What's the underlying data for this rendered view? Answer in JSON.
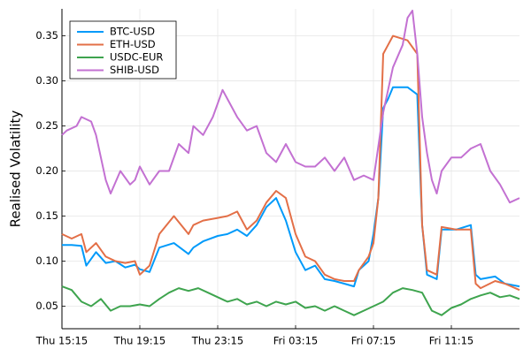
{
  "chart_data": {
    "type": "line",
    "ylabel": "Realised Volatility",
    "xlabel": "",
    "x_axis_kind": "datetime",
    "x_ticks": [
      "Thu 15:15",
      "Thu 19:15",
      "Thu 23:15",
      "Fri 03:15",
      "Fri 07:15",
      "Fri 11:15"
    ],
    "x_range": [
      "Thu 15:15",
      "Fri 14:45"
    ],
    "ylim": [
      0.025,
      0.38
    ],
    "y_ticks": [
      0.05,
      0.1,
      0.15,
      0.2,
      0.25,
      0.3,
      0.35
    ],
    "y_tick_labels": [
      "0.05",
      "0.10",
      "0.15",
      "0.20",
      "0.25",
      "0.30",
      "0.35"
    ],
    "grid": true,
    "legend_position": "top-left",
    "colors": {
      "BTC-USD": "#009AFA",
      "ETH-USD": "#E36F47",
      "USDC-EUR": "#3EA44E",
      "SHIB-USD": "#C371D2"
    },
    "series": [
      {
        "name": "BTC-USD",
        "points": [
          [
            "Thu 15:15",
            0.118
          ],
          [
            "Thu 15:45",
            0.118
          ],
          [
            "Thu 16:15",
            0.117
          ],
          [
            "Thu 16:30",
            0.095
          ],
          [
            "Thu 17:00",
            0.11
          ],
          [
            "Thu 17:30",
            0.098
          ],
          [
            "Thu 18:00",
            0.1
          ],
          [
            "Thu 18:30",
            0.093
          ],
          [
            "Thu 19:00",
            0.096
          ],
          [
            "Thu 19:15",
            0.091
          ],
          [
            "Thu 19:45",
            0.088
          ],
          [
            "Thu 20:15",
            0.115
          ],
          [
            "Thu 21:00",
            0.12
          ],
          [
            "Thu 21:45",
            0.108
          ],
          [
            "Thu 22:00",
            0.115
          ],
          [
            "Thu 22:30",
            0.122
          ],
          [
            "Thu 23:15",
            0.128
          ],
          [
            "Thu 23:45",
            0.13
          ],
          [
            "Fri 00:15",
            0.135
          ],
          [
            "Fri 00:45",
            0.128
          ],
          [
            "Fri 01:15",
            0.14
          ],
          [
            "Fri 01:45",
            0.16
          ],
          [
            "Fri 02:15",
            0.17
          ],
          [
            "Fri 02:45",
            0.145
          ],
          [
            "Fri 03:15",
            0.11
          ],
          [
            "Fri 03:45",
            0.09
          ],
          [
            "Fri 04:15",
            0.095
          ],
          [
            "Fri 04:45",
            0.08
          ],
          [
            "Fri 05:15",
            0.078
          ],
          [
            "Fri 05:45",
            0.075
          ],
          [
            "Fri 06:15",
            0.072
          ],
          [
            "Fri 06:30",
            0.09
          ],
          [
            "Fri 07:00",
            0.1
          ],
          [
            "Fri 07:15",
            0.13
          ],
          [
            "Fri 07:30",
            0.17
          ],
          [
            "Fri 07:45",
            0.27
          ],
          [
            "Fri 08:00",
            0.28
          ],
          [
            "Fri 08:15",
            0.293
          ],
          [
            "Fri 09:00",
            0.293
          ],
          [
            "Fri 09:30",
            0.285
          ],
          [
            "Fri 09:45",
            0.14
          ],
          [
            "Fri 10:00",
            0.085
          ],
          [
            "Fri 10:30",
            0.08
          ],
          [
            "Fri 10:45",
            0.135
          ],
          [
            "Fri 11:30",
            0.135
          ],
          [
            "Fri 12:15",
            0.14
          ],
          [
            "Fri 12:30",
            0.085
          ],
          [
            "Fri 12:45",
            0.08
          ],
          [
            "Fri 13:30",
            0.083
          ],
          [
            "Fri 14:00",
            0.075
          ],
          [
            "Fri 14:45",
            0.072
          ]
        ]
      },
      {
        "name": "ETH-USD",
        "points": [
          [
            "Thu 15:15",
            0.13
          ],
          [
            "Thu 15:45",
            0.125
          ],
          [
            "Thu 16:15",
            0.13
          ],
          [
            "Thu 16:30",
            0.11
          ],
          [
            "Thu 17:00",
            0.12
          ],
          [
            "Thu 17:30",
            0.105
          ],
          [
            "Thu 18:00",
            0.1
          ],
          [
            "Thu 18:30",
            0.098
          ],
          [
            "Thu 19:00",
            0.1
          ],
          [
            "Thu 19:15",
            0.085
          ],
          [
            "Thu 19:45",
            0.095
          ],
          [
            "Thu 20:15",
            0.13
          ],
          [
            "Thu 21:00",
            0.15
          ],
          [
            "Thu 21:45",
            0.13
          ],
          [
            "Thu 22:00",
            0.14
          ],
          [
            "Thu 22:30",
            0.145
          ],
          [
            "Thu 23:15",
            0.148
          ],
          [
            "Thu 23:45",
            0.15
          ],
          [
            "Fri 00:15",
            0.155
          ],
          [
            "Fri 00:45",
            0.135
          ],
          [
            "Fri 01:15",
            0.145
          ],
          [
            "Fri 01:45",
            0.165
          ],
          [
            "Fri 02:15",
            0.178
          ],
          [
            "Fri 02:45",
            0.17
          ],
          [
            "Fri 03:15",
            0.13
          ],
          [
            "Fri 03:45",
            0.105
          ],
          [
            "Fri 04:15",
            0.1
          ],
          [
            "Fri 04:45",
            0.085
          ],
          [
            "Fri 05:15",
            0.08
          ],
          [
            "Fri 05:45",
            0.078
          ],
          [
            "Fri 06:15",
            0.078
          ],
          [
            "Fri 06:30",
            0.09
          ],
          [
            "Fri 07:00",
            0.105
          ],
          [
            "Fri 07:15",
            0.12
          ],
          [
            "Fri 07:30",
            0.17
          ],
          [
            "Fri 07:45",
            0.33
          ],
          [
            "Fri 08:00",
            0.34
          ],
          [
            "Fri 08:15",
            0.35
          ],
          [
            "Fri 09:00",
            0.345
          ],
          [
            "Fri 09:30",
            0.33
          ],
          [
            "Fri 09:45",
            0.14
          ],
          [
            "Fri 10:00",
            0.09
          ],
          [
            "Fri 10:30",
            0.085
          ],
          [
            "Fri 10:45",
            0.138
          ],
          [
            "Fri 11:30",
            0.135
          ],
          [
            "Fri 12:15",
            0.135
          ],
          [
            "Fri 12:30",
            0.075
          ],
          [
            "Fri 12:45",
            0.07
          ],
          [
            "Fri 13:30",
            0.078
          ],
          [
            "Fri 14:00",
            0.075
          ],
          [
            "Fri 14:45",
            0.068
          ]
        ]
      },
      {
        "name": "USDC-EUR",
        "points": [
          [
            "Thu 15:15",
            0.072
          ],
          [
            "Thu 15:45",
            0.068
          ],
          [
            "Thu 16:15",
            0.055
          ],
          [
            "Thu 16:45",
            0.05
          ],
          [
            "Thu 17:15",
            0.058
          ],
          [
            "Thu 17:45",
            0.045
          ],
          [
            "Thu 18:15",
            0.05
          ],
          [
            "Thu 18:45",
            0.05
          ],
          [
            "Thu 19:15",
            0.052
          ],
          [
            "Thu 19:45",
            0.05
          ],
          [
            "Thu 20:15",
            0.058
          ],
          [
            "Thu 20:45",
            0.065
          ],
          [
            "Thu 21:15",
            0.07
          ],
          [
            "Thu 21:45",
            0.067
          ],
          [
            "Thu 22:15",
            0.07
          ],
          [
            "Thu 22:45",
            0.065
          ],
          [
            "Thu 23:15",
            0.06
          ],
          [
            "Thu 23:45",
            0.055
          ],
          [
            "Fri 00:15",
            0.058
          ],
          [
            "Fri 00:45",
            0.052
          ],
          [
            "Fri 01:15",
            0.055
          ],
          [
            "Fri 01:45",
            0.05
          ],
          [
            "Fri 02:15",
            0.055
          ],
          [
            "Fri 02:45",
            0.052
          ],
          [
            "Fri 03:15",
            0.055
          ],
          [
            "Fri 03:45",
            0.048
          ],
          [
            "Fri 04:15",
            0.05
          ],
          [
            "Fri 04:45",
            0.045
          ],
          [
            "Fri 05:15",
            0.05
          ],
          [
            "Fri 05:45",
            0.045
          ],
          [
            "Fri 06:15",
            0.04
          ],
          [
            "Fri 06:45",
            0.045
          ],
          [
            "Fri 07:15",
            0.05
          ],
          [
            "Fri 07:45",
            0.055
          ],
          [
            "Fri 08:15",
            0.065
          ],
          [
            "Fri 08:45",
            0.07
          ],
          [
            "Fri 09:15",
            0.068
          ],
          [
            "Fri 09:45",
            0.065
          ],
          [
            "Fri 10:15",
            0.045
          ],
          [
            "Fri 10:45",
            0.04
          ],
          [
            "Fri 11:15",
            0.048
          ],
          [
            "Fri 11:45",
            0.052
          ],
          [
            "Fri 12:15",
            0.058
          ],
          [
            "Fri 12:45",
            0.062
          ],
          [
            "Fri 13:15",
            0.065
          ],
          [
            "Fri 13:45",
            0.06
          ],
          [
            "Fri 14:15",
            0.062
          ],
          [
            "Fri 14:45",
            0.058
          ]
        ]
      },
      {
        "name": "SHIB-USD",
        "points": [
          [
            "Thu 15:15",
            0.24
          ],
          [
            "Thu 15:30",
            0.245
          ],
          [
            "Thu 16:00",
            0.25
          ],
          [
            "Thu 16:15",
            0.26
          ],
          [
            "Thu 16:45",
            0.255
          ],
          [
            "Thu 17:00",
            0.24
          ],
          [
            "Thu 17:15",
            0.215
          ],
          [
            "Thu 17:30",
            0.19
          ],
          [
            "Thu 17:45",
            0.175
          ],
          [
            "Thu 18:15",
            0.2
          ],
          [
            "Thu 18:45",
            0.185
          ],
          [
            "Thu 19:00",
            0.19
          ],
          [
            "Thu 19:15",
            0.205
          ],
          [
            "Thu 19:45",
            0.185
          ],
          [
            "Thu 20:15",
            0.2
          ],
          [
            "Thu 20:45",
            0.2
          ],
          [
            "Thu 21:15",
            0.23
          ],
          [
            "Thu 21:45",
            0.22
          ],
          [
            "Thu 22:00",
            0.25
          ],
          [
            "Thu 22:30",
            0.24
          ],
          [
            "Thu 23:00",
            0.26
          ],
          [
            "Thu 23:30",
            0.29
          ],
          [
            "Thu 23:45",
            0.28
          ],
          [
            "Fri 00:15",
            0.26
          ],
          [
            "Fri 00:45",
            0.245
          ],
          [
            "Fri 01:15",
            0.25
          ],
          [
            "Fri 01:45",
            0.22
          ],
          [
            "Fri 02:15",
            0.21
          ],
          [
            "Fri 02:45",
            0.23
          ],
          [
            "Fri 03:15",
            0.21
          ],
          [
            "Fri 03:45",
            0.205
          ],
          [
            "Fri 04:15",
            0.205
          ],
          [
            "Fri 04:45",
            0.215
          ],
          [
            "Fri 05:15",
            0.2
          ],
          [
            "Fri 05:45",
            0.215
          ],
          [
            "Fri 06:15",
            0.19
          ],
          [
            "Fri 06:45",
            0.195
          ],
          [
            "Fri 07:15",
            0.19
          ],
          [
            "Fri 07:45",
            0.265
          ],
          [
            "Fri 08:15",
            0.315
          ],
          [
            "Fri 08:45",
            0.34
          ],
          [
            "Fri 09:00",
            0.37
          ],
          [
            "Fri 09:15",
            0.378
          ],
          [
            "Fri 09:30",
            0.33
          ],
          [
            "Fri 09:45",
            0.26
          ],
          [
            "Fri 10:00",
            0.22
          ],
          [
            "Fri 10:15",
            0.19
          ],
          [
            "Fri 10:30",
            0.175
          ],
          [
            "Fri 10:45",
            0.2
          ],
          [
            "Fri 11:15",
            0.215
          ],
          [
            "Fri 11:45",
            0.215
          ],
          [
            "Fri 12:15",
            0.225
          ],
          [
            "Fri 12:45",
            0.23
          ],
          [
            "Fri 13:15",
            0.2
          ],
          [
            "Fri 13:45",
            0.185
          ],
          [
            "Fri 14:15",
            0.165
          ],
          [
            "Fri 14:45",
            0.17
          ]
        ]
      }
    ]
  }
}
